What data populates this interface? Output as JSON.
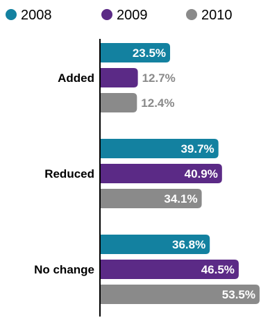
{
  "chart_data": {
    "type": "bar",
    "orientation": "horizontal",
    "categories": [
      "Added",
      "Reduced",
      "No change"
    ],
    "series": [
      {
        "name": "2008",
        "values": [
          23.5,
          39.7,
          36.8
        ],
        "labels": [
          "23.5%",
          "39.7%",
          "36.8%"
        ]
      },
      {
        "name": "2009",
        "values": [
          12.7,
          40.9,
          46.5
        ],
        "labels": [
          "12.7%",
          "40.9%",
          "46.5%"
        ]
      },
      {
        "name": "2010",
        "values": [
          12.4,
          34.1,
          53.5
        ],
        "labels": [
          "12.4%",
          "34.1%",
          "53.5%"
        ]
      }
    ],
    "xlim": [
      0,
      53.5
    ],
    "grid": false,
    "legend_position": "top-left",
    "title": "",
    "xlabel": "",
    "ylabel": ""
  },
  "colors": {
    "2008": "#1381a0",
    "2009": "#5b2a86",
    "2010": "#8a8a8a",
    "axis": "#000000",
    "label_inside": "#ffffff",
    "text": "#000000"
  },
  "legend": {
    "items": [
      {
        "label": "2008",
        "icon": "circle-icon"
      },
      {
        "label": "2009",
        "icon": "circle-icon"
      },
      {
        "label": "2010",
        "icon": "circle-icon"
      }
    ]
  }
}
